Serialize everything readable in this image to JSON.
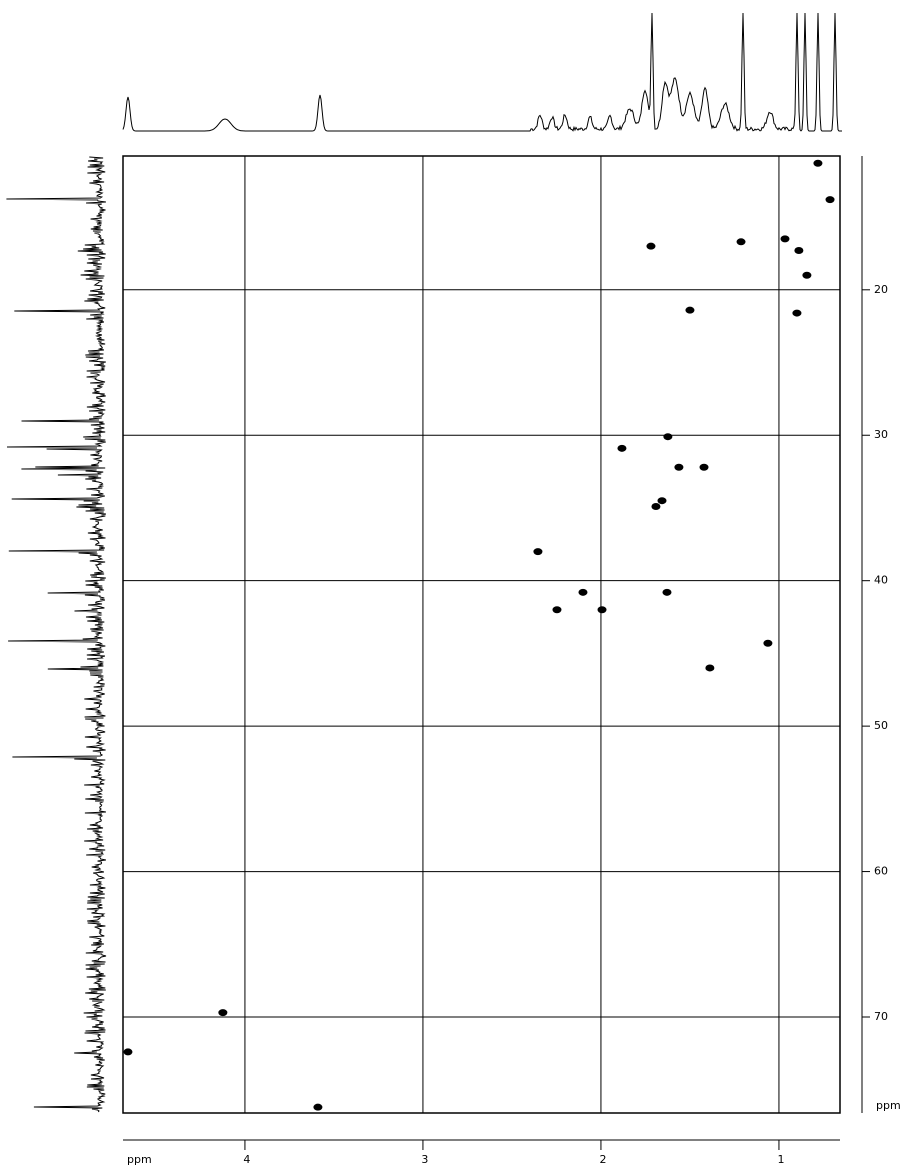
{
  "chart_data": {
    "type": "scatter",
    "xlabel": "ppm",
    "ylabel": "ppm",
    "x": [
      0.781,
      0.713,
      1.719,
      1.213,
      0.966,
      0.888,
      0.843,
      1.5,
      0.899,
      1.624,
      1.882,
      1.562,
      1.421,
      1.657,
      1.691,
      2.354,
      2.101,
      1.629,
      2.247,
      1.994,
      1.062,
      1.388,
      4.124,
      4.657,
      3.59
    ],
    "values": [
      11.3,
      13.8,
      17.0,
      16.7,
      16.5,
      17.3,
      19.0,
      21.4,
      21.6,
      30.1,
      30.9,
      32.2,
      32.2,
      34.5,
      34.9,
      38.0,
      40.8,
      40.8,
      42.0,
      42.0,
      44.3,
      46.0,
      69.7,
      72.4,
      76.2
    ],
    "color": "#000000",
    "xlim": [
      4.685,
      0.657
    ],
    "xticks": [
      4,
      3,
      2,
      1
    ],
    "ylim": [
      10.8,
      76.6
    ],
    "yticks": [
      20,
      30,
      40,
      50,
      60,
      70
    ],
    "grid": true
  }
}
